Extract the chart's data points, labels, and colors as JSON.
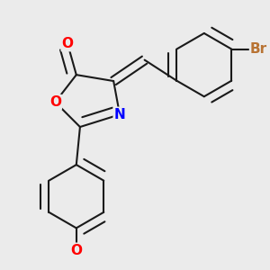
{
  "background_color": "#ebebeb",
  "atom_colors": {
    "O": "#ff0000",
    "N": "#0000ff",
    "Br": "#b87333",
    "C": "#000000"
  },
  "bond_color": "#1a1a1a",
  "bond_width": 1.5,
  "dbo": 0.035,
  "figsize": [
    3.0,
    3.0
  ],
  "dpi": 100
}
